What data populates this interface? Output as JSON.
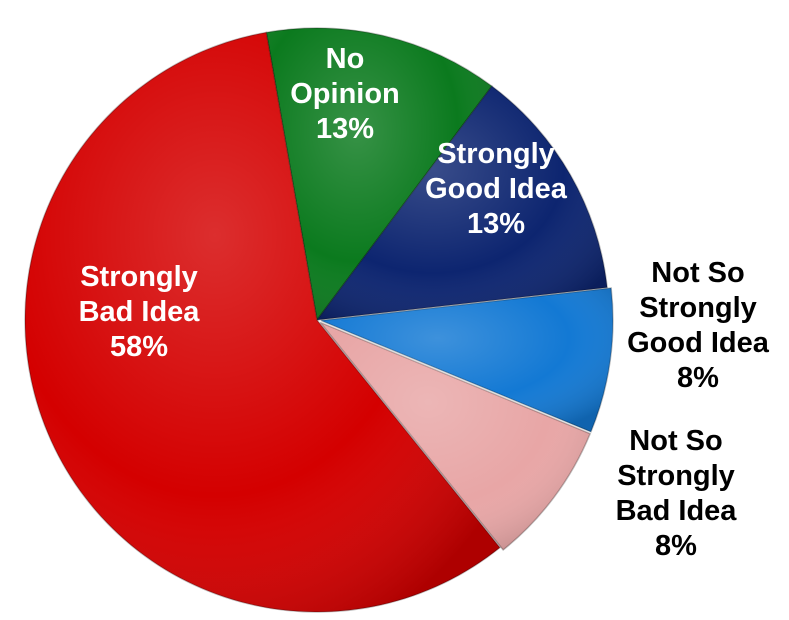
{
  "chart_data": {
    "type": "pie",
    "title": "",
    "slices": [
      {
        "category": "No Opinion",
        "label_lines": [
          "No",
          "Opinion"
        ],
        "percent_label": "13%",
        "value": 13,
        "color": "#0b7a1e",
        "label_color": "#ffffff"
      },
      {
        "category": "Strongly Good Idea",
        "label_lines": [
          "Strongly",
          "Good Idea"
        ],
        "percent_label": "13%",
        "value": 13,
        "color": "#0d2570",
        "label_color": "#ffffff"
      },
      {
        "category": "Not So Strongly Good Idea",
        "label_lines": [
          "Not So",
          "Strongly",
          "Good Idea"
        ],
        "percent_label": "8%",
        "value": 8,
        "color": "#1379d4",
        "label_color": "#000000"
      },
      {
        "category": "Not So Strongly Bad Idea",
        "label_lines": [
          "Not So",
          "Strongly",
          "Bad Idea"
        ],
        "percent_label": "8%",
        "value": 8,
        "color": "#e8a6a6",
        "label_color": "#000000"
      },
      {
        "category": "Strongly Bad Idea",
        "label_lines": [
          "Strongly",
          "Bad Idea"
        ],
        "percent_label": "58%",
        "value": 58,
        "color": "#d40000",
        "label_color": "#ffffff"
      }
    ]
  }
}
